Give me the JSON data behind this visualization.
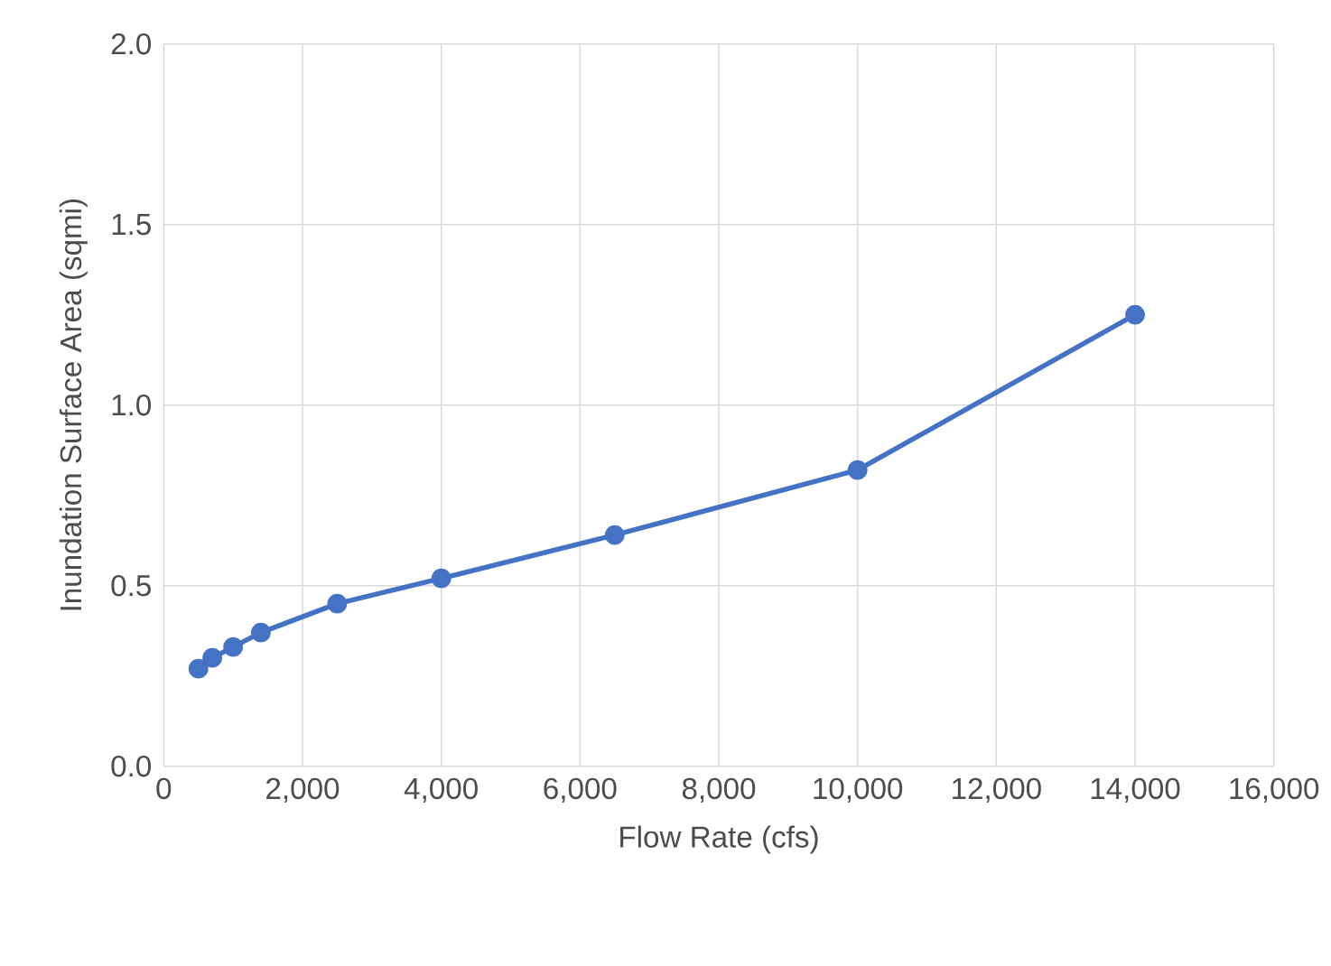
{
  "chart_data": {
    "type": "line",
    "xlabel": "Flow Rate (cfs)",
    "ylabel": "Inundation Surface Area (sqmi)",
    "x": [
      500,
      700,
      1000,
      1400,
      2500,
      4000,
      6500,
      10000,
      14000
    ],
    "series": [
      {
        "color": "#4472c4",
        "values": [
          0.27,
          0.3,
          0.33,
          0.37,
          0.45,
          0.52,
          0.64,
          0.82,
          1.25
        ]
      }
    ],
    "xlim": [
      0,
      16000
    ],
    "xticks": [
      0,
      {
        "value": 2000,
        "label": "2,000"
      },
      {
        "value": 4000,
        "label": "4,000"
      },
      {
        "value": 6000,
        "label": "6,000"
      },
      {
        "value": 8000,
        "label": "8,000"
      },
      {
        "value": 10000,
        "label": "10,000"
      },
      {
        "value": 12000,
        "label": "12,000"
      },
      {
        "value": 14000,
        "label": "14,000"
      },
      {
        "value": 16000,
        "label": "16,000"
      }
    ],
    "ylim": [
      0,
      2.0
    ],
    "yticks": [
      {
        "value": 0,
        "label": "0.0"
      },
      0.5,
      {
        "value": 1,
        "label": "1.0"
      },
      1.5,
      {
        "value": 2,
        "label": "2.0"
      }
    ],
    "grid": true,
    "marker": "circle",
    "line_style": "solid"
  }
}
